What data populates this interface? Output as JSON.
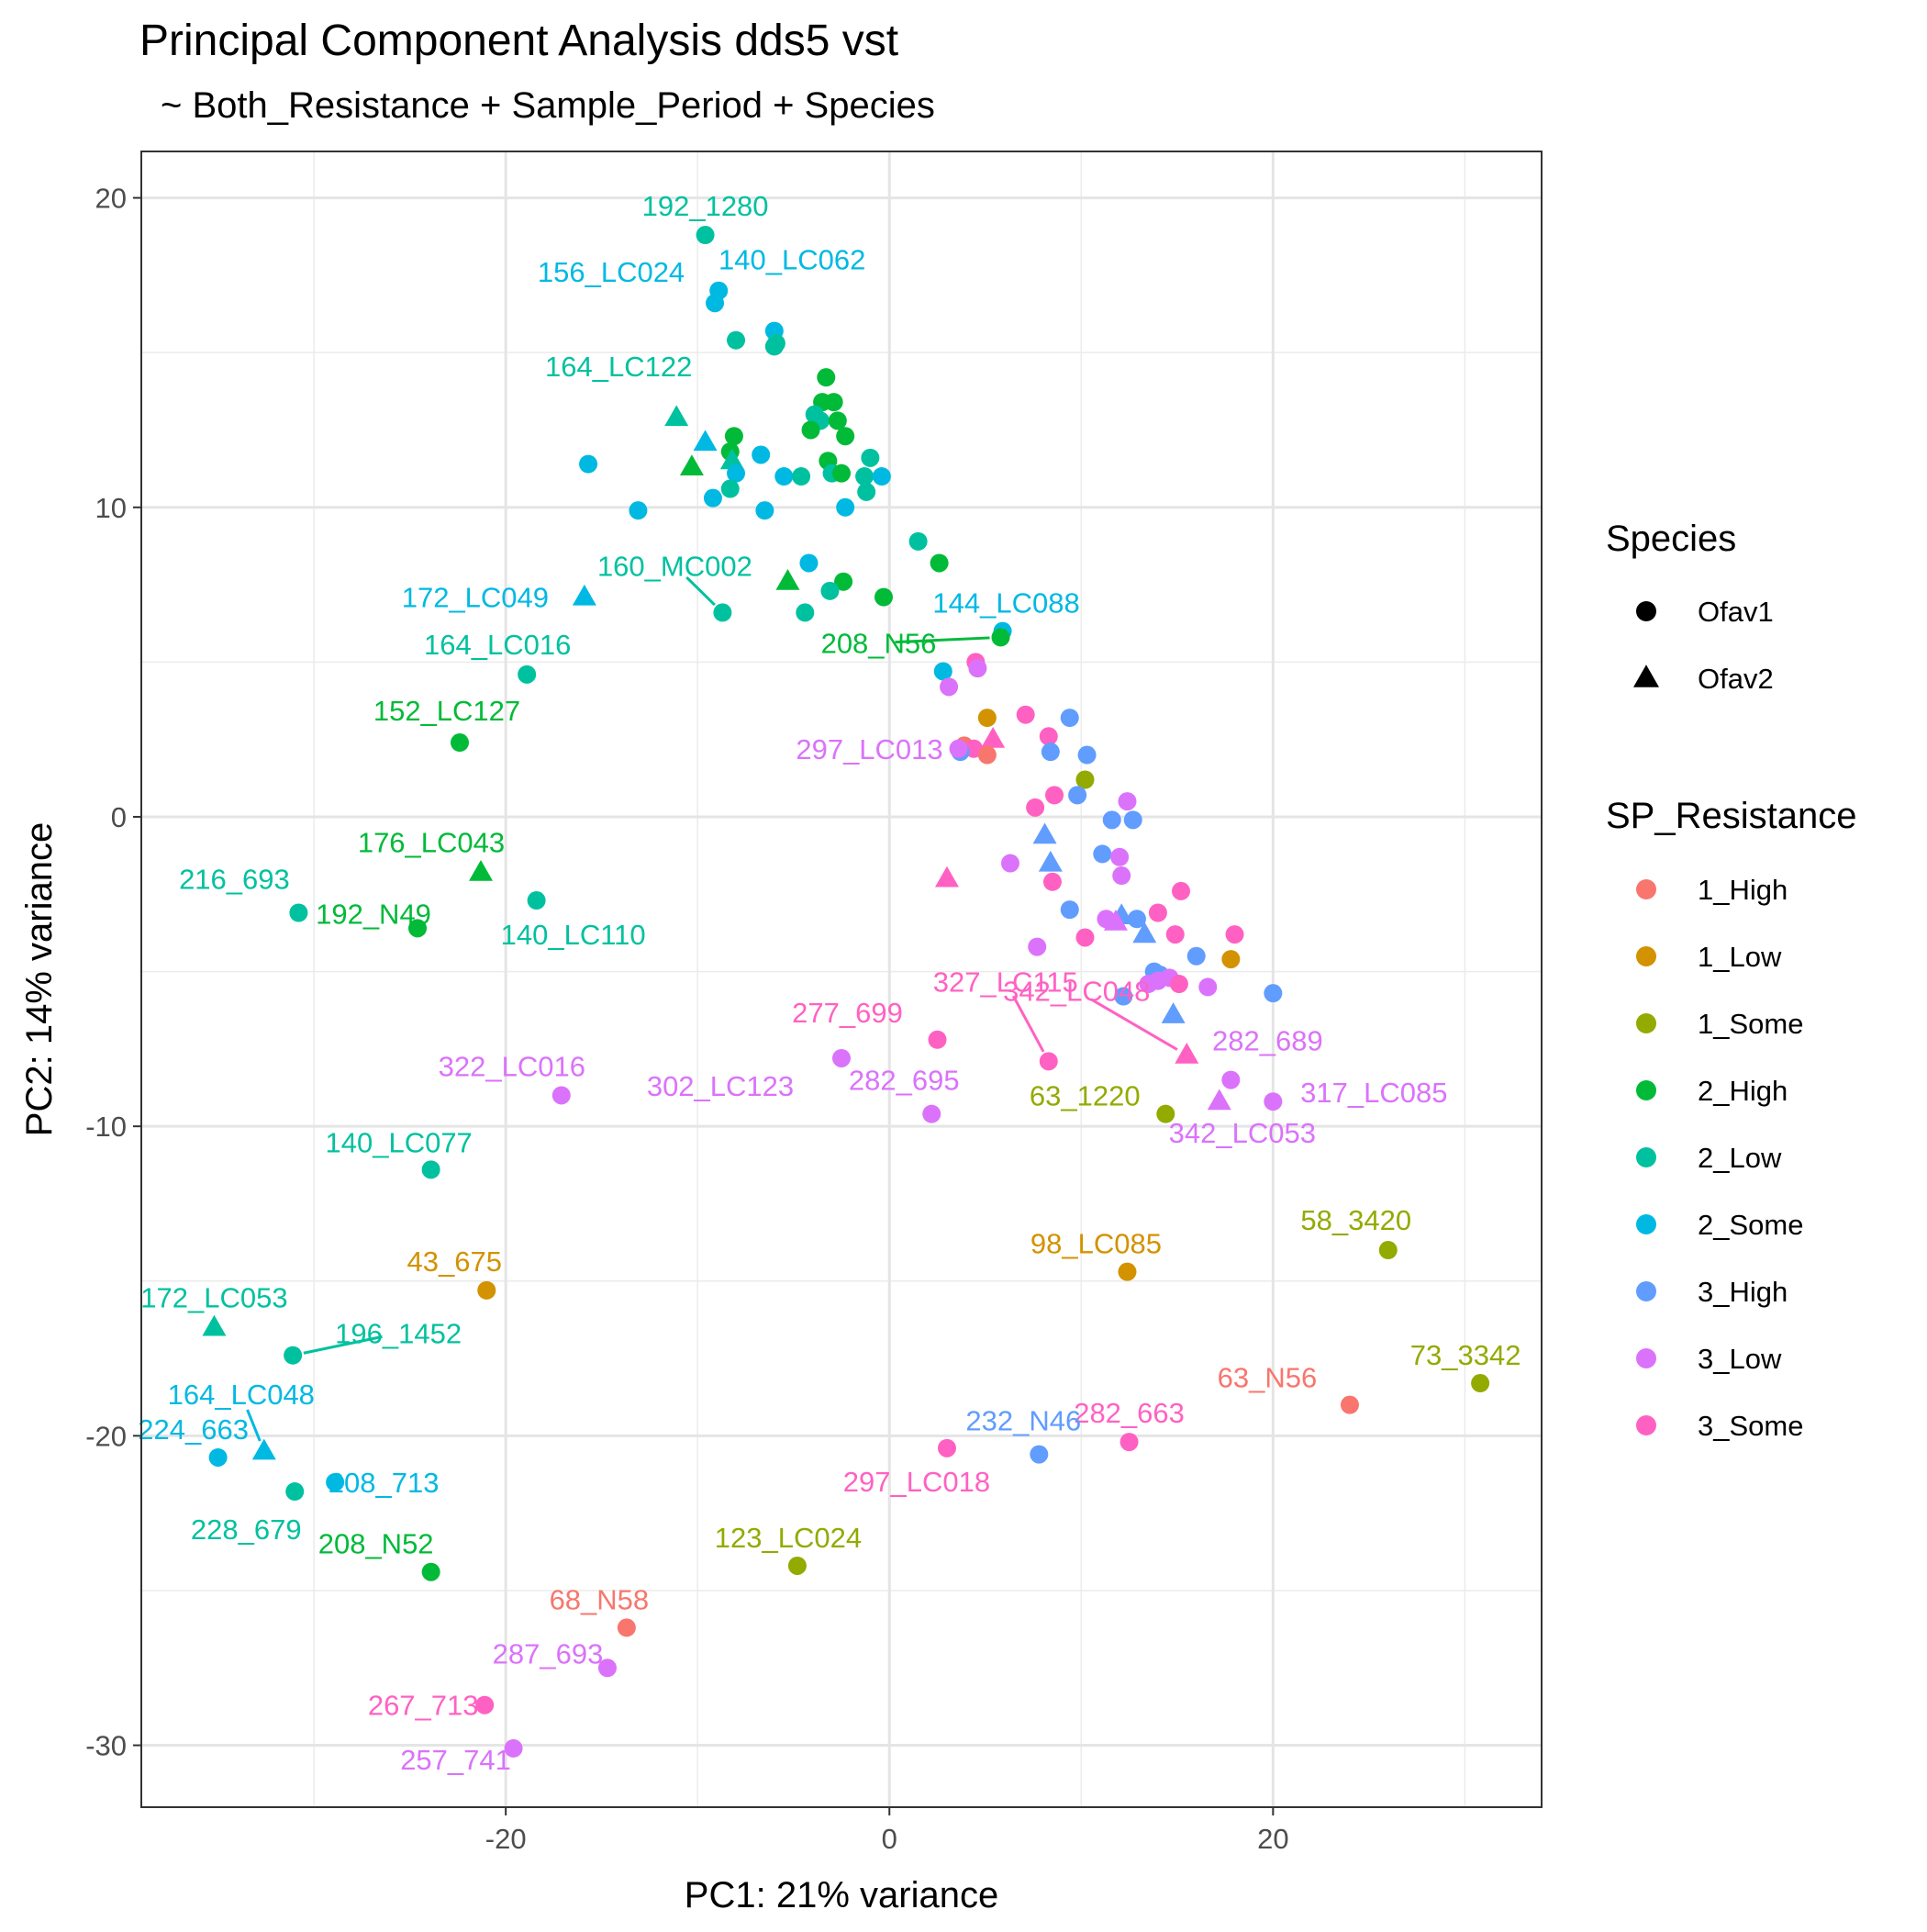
{
  "chart_data": {
    "type": "scatter",
    "title": "Principal Component Analysis dds5 vst",
    "subtitle": "~ Both_Resistance + Sample_Period + Species",
    "xlabel": "PC1: 21% variance",
    "ylabel": "PC2: 14% variance",
    "xlim": [
      -39,
      34
    ],
    "ylim": [
      -32,
      21.5
    ],
    "x_ticks": [
      -20,
      0,
      20
    ],
    "y_ticks": [
      -30,
      -20,
      -10,
      0,
      10,
      20
    ],
    "x_tick_labels": [
      "-20",
      "0",
      "20"
    ],
    "y_tick_labels": [
      "-30",
      "-20",
      "-10",
      "0",
      "10",
      "20"
    ],
    "grid": true,
    "legend_position": "right",
    "shape_legend": {
      "title": "Species",
      "items": [
        {
          "label": "Ofav1",
          "shape": "circle"
        },
        {
          "label": "Ofav2",
          "shape": "triangle"
        }
      ]
    },
    "color_legend": {
      "title": "SP_Resistance",
      "items": [
        {
          "label": "1_High",
          "color": "#F8766D"
        },
        {
          "label": "1_Low",
          "color": "#D39200"
        },
        {
          "label": "1_Some",
          "color": "#93AA00"
        },
        {
          "label": "2_High",
          "color": "#00BA38"
        },
        {
          "label": "2_Low",
          "color": "#00C19F"
        },
        {
          "label": "2_Some",
          "color": "#00B9E3"
        },
        {
          "label": "3_High",
          "color": "#619CFF"
        },
        {
          "label": "3_Low",
          "color": "#DB72FB"
        },
        {
          "label": "3_Some",
          "color": "#FF61C3"
        }
      ]
    },
    "points": [
      {
        "x": -9.6,
        "y": 18.8,
        "group": "2_Low",
        "species": "Ofav1",
        "label": "192_1280"
      },
      {
        "x": -8.9,
        "y": 17.0,
        "group": "2_Some",
        "species": "Ofav1",
        "label": "140_LC062"
      },
      {
        "x": -9.1,
        "y": 16.6,
        "group": "2_Some",
        "species": "Ofav1",
        "label": "156_LC024"
      },
      {
        "x": -6.0,
        "y": 15.7,
        "group": "2_Some",
        "species": "Ofav1"
      },
      {
        "x": -8.0,
        "y": 15.4,
        "group": "2_Low",
        "species": "Ofav1"
      },
      {
        "x": -5.9,
        "y": 15.3,
        "group": "2_Low",
        "species": "Ofav1"
      },
      {
        "x": -6.0,
        "y": 15.2,
        "group": "2_Low",
        "species": "Ofav1"
      },
      {
        "x": -3.3,
        "y": 14.2,
        "group": "2_High",
        "species": "Ofav1"
      },
      {
        "x": -11.1,
        "y": 12.9,
        "group": "2_Low",
        "species": "Ofav2",
        "label": "164_LC122"
      },
      {
        "x": -3.5,
        "y": 13.4,
        "group": "2_High",
        "species": "Ofav1"
      },
      {
        "x": -2.9,
        "y": 13.4,
        "group": "2_High",
        "species": "Ofav1"
      },
      {
        "x": -3.9,
        "y": 13.0,
        "group": "2_Low",
        "species": "Ofav1"
      },
      {
        "x": -3.6,
        "y": 12.8,
        "group": "2_Low",
        "species": "Ofav1"
      },
      {
        "x": -2.7,
        "y": 12.8,
        "group": "2_High",
        "species": "Ofav1"
      },
      {
        "x": -4.1,
        "y": 12.5,
        "group": "2_High",
        "species": "Ofav1"
      },
      {
        "x": -8.1,
        "y": 12.3,
        "group": "2_High",
        "species": "Ofav1"
      },
      {
        "x": -2.3,
        "y": 12.3,
        "group": "2_High",
        "species": "Ofav1"
      },
      {
        "x": -9.6,
        "y": 12.1,
        "group": "2_Some",
        "species": "Ofav2"
      },
      {
        "x": -8.3,
        "y": 11.8,
        "group": "2_High",
        "species": "Ofav1"
      },
      {
        "x": -6.7,
        "y": 11.7,
        "group": "2_Some",
        "species": "Ofav1"
      },
      {
        "x": -1.0,
        "y": 11.6,
        "group": "2_Low",
        "species": "Ofav1"
      },
      {
        "x": -8.2,
        "y": 11.5,
        "group": "2_Low",
        "species": "Ofav2"
      },
      {
        "x": -3.2,
        "y": 11.5,
        "group": "2_High",
        "species": "Ofav1"
      },
      {
        "x": -10.3,
        "y": 11.3,
        "group": "2_High",
        "species": "Ofav2"
      },
      {
        "x": -15.7,
        "y": 11.4,
        "group": "2_Some",
        "species": "Ofav1"
      },
      {
        "x": -3.0,
        "y": 11.1,
        "group": "2_Low",
        "species": "Ofav1"
      },
      {
        "x": -2.5,
        "y": 11.1,
        "group": "2_High",
        "species": "Ofav1"
      },
      {
        "x": -8.0,
        "y": 11.1,
        "group": "2_Some",
        "species": "Ofav1"
      },
      {
        "x": -1.3,
        "y": 11.0,
        "group": "2_Low",
        "species": "Ofav1"
      },
      {
        "x": -0.4,
        "y": 11.0,
        "group": "2_Some",
        "species": "Ofav1"
      },
      {
        "x": -5.5,
        "y": 11.0,
        "group": "2_Some",
        "species": "Ofav1"
      },
      {
        "x": -4.6,
        "y": 11.0,
        "group": "2_Low",
        "species": "Ofav1"
      },
      {
        "x": -8.3,
        "y": 10.6,
        "group": "2_Low",
        "species": "Ofav1"
      },
      {
        "x": -1.2,
        "y": 10.5,
        "group": "2_Low",
        "species": "Ofav1"
      },
      {
        "x": -9.2,
        "y": 10.3,
        "group": "2_Some",
        "species": "Ofav1"
      },
      {
        "x": -2.3,
        "y": 10.0,
        "group": "2_Some",
        "species": "Ofav1"
      },
      {
        "x": -13.1,
        "y": 9.9,
        "group": "2_Some",
        "species": "Ofav1"
      },
      {
        "x": -6.5,
        "y": 9.9,
        "group": "2_Some",
        "species": "Ofav1"
      },
      {
        "x": 1.5,
        "y": 8.9,
        "group": "2_Low",
        "species": "Ofav1"
      },
      {
        "x": 2.6,
        "y": 8.2,
        "group": "2_High",
        "species": "Ofav1"
      },
      {
        "x": -4.2,
        "y": 8.2,
        "group": "2_Some",
        "species": "Ofav1"
      },
      {
        "x": -5.3,
        "y": 7.6,
        "group": "2_High",
        "species": "Ofav2"
      },
      {
        "x": -2.4,
        "y": 7.6,
        "group": "2_High",
        "species": "Ofav1"
      },
      {
        "x": -3.1,
        "y": 7.3,
        "group": "2_Low",
        "species": "Ofav1"
      },
      {
        "x": -0.3,
        "y": 7.1,
        "group": "2_High",
        "species": "Ofav1"
      },
      {
        "x": -15.9,
        "y": 7.1,
        "group": "2_Some",
        "species": "Ofav2",
        "label": "172_LC049"
      },
      {
        "x": -4.4,
        "y": 6.6,
        "group": "2_Low",
        "species": "Ofav1"
      },
      {
        "x": -8.7,
        "y": 6.6,
        "group": "2_Low",
        "species": "Ofav1",
        "label": "160_MC002"
      },
      {
        "x": 5.9,
        "y": 6.0,
        "group": "2_Some",
        "species": "Ofav1",
        "label": "144_LC088"
      },
      {
        "x": 5.8,
        "y": 5.8,
        "group": "2_High",
        "species": "Ofav1",
        "label": "208_N56"
      },
      {
        "x": 4.5,
        "y": 5.0,
        "group": "3_Some",
        "species": "Ofav1"
      },
      {
        "x": 4.6,
        "y": 4.8,
        "group": "3_Low",
        "species": "Ofav1"
      },
      {
        "x": 2.8,
        "y": 4.7,
        "group": "2_Some",
        "species": "Ofav1"
      },
      {
        "x": -18.9,
        "y": 4.6,
        "group": "2_Low",
        "species": "Ofav1",
        "label": "164_LC016"
      },
      {
        "x": 3.1,
        "y": 4.2,
        "group": "3_Low",
        "species": "Ofav1"
      },
      {
        "x": 7.1,
        "y": 3.3,
        "group": "3_Some",
        "species": "Ofav1"
      },
      {
        "x": 5.1,
        "y": 3.2,
        "group": "1_Low",
        "species": "Ofav1"
      },
      {
        "x": 9.4,
        "y": 3.2,
        "group": "3_High",
        "species": "Ofav1"
      },
      {
        "x": 8.3,
        "y": 2.6,
        "group": "3_Some",
        "species": "Ofav1"
      },
      {
        "x": 5.4,
        "y": 2.5,
        "group": "3_Some",
        "species": "Ofav2"
      },
      {
        "x": -22.4,
        "y": 2.4,
        "group": "2_High",
        "species": "Ofav1",
        "label": "152_LC127"
      },
      {
        "x": 3.9,
        "y": 2.3,
        "group": "1_High",
        "species": "Ofav1"
      },
      {
        "x": 4.4,
        "y": 2.2,
        "group": "3_Some",
        "species": "Ofav1"
      },
      {
        "x": 3.7,
        "y": 2.1,
        "group": "3_High",
        "species": "Ofav1"
      },
      {
        "x": 8.4,
        "y": 2.1,
        "group": "3_High",
        "species": "Ofav1"
      },
      {
        "x": 10.3,
        "y": 2.0,
        "group": "3_High",
        "species": "Ofav1"
      },
      {
        "x": 5.1,
        "y": 2.0,
        "group": "1_High",
        "species": "Ofav1"
      },
      {
        "x": 3.6,
        "y": 2.2,
        "group": "3_Low",
        "species": "Ofav1",
        "label": "297_LC013"
      },
      {
        "x": 10.2,
        "y": 1.2,
        "group": "1_Some",
        "species": "Ofav1"
      },
      {
        "x": 8.6,
        "y": 0.7,
        "group": "3_Some",
        "species": "Ofav1"
      },
      {
        "x": 9.8,
        "y": 0.7,
        "group": "3_High",
        "species": "Ofav1"
      },
      {
        "x": 12.4,
        "y": 0.5,
        "group": "3_Low",
        "species": "Ofav1"
      },
      {
        "x": 7.6,
        "y": 0.3,
        "group": "3_Some",
        "species": "Ofav1"
      },
      {
        "x": 11.6,
        "y": -0.1,
        "group": "3_High",
        "species": "Ofav1"
      },
      {
        "x": 12.7,
        "y": -0.1,
        "group": "3_High",
        "species": "Ofav1"
      },
      {
        "x": 8.1,
        "y": -0.6,
        "group": "3_High",
        "species": "Ofav2"
      },
      {
        "x": 11.1,
        "y": -1.2,
        "group": "3_High",
        "species": "Ofav1"
      },
      {
        "x": 12.0,
        "y": -1.3,
        "group": "3_Low",
        "species": "Ofav1"
      },
      {
        "x": 6.3,
        "y": -1.5,
        "group": "3_Low",
        "species": "Ofav1"
      },
      {
        "x": 8.4,
        "y": -1.5,
        "group": "3_High",
        "species": "Ofav2"
      },
      {
        "x": -21.3,
        "y": -1.8,
        "group": "2_High",
        "species": "Ofav2",
        "label": "176_LC043"
      },
      {
        "x": 12.1,
        "y": -1.9,
        "group": "3_Low",
        "species": "Ofav1"
      },
      {
        "x": 3.0,
        "y": -2.0,
        "group": "3_Some",
        "species": "Ofav2"
      },
      {
        "x": 8.5,
        "y": -2.1,
        "group": "3_Some",
        "species": "Ofav1"
      },
      {
        "x": 15.2,
        "y": -2.4,
        "group": "3_Some",
        "species": "Ofav1"
      },
      {
        "x": -18.4,
        "y": -2.7,
        "group": "2_Low",
        "species": "Ofav1",
        "label": "140_LC110"
      },
      {
        "x": 9.4,
        "y": -3.0,
        "group": "3_High",
        "species": "Ofav1"
      },
      {
        "x": 14.0,
        "y": -3.1,
        "group": "3_Some",
        "species": "Ofav1"
      },
      {
        "x": -30.8,
        "y": -3.1,
        "group": "2_Low",
        "species": "Ofav1",
        "label": "216_693"
      },
      {
        "x": 11.3,
        "y": -3.3,
        "group": "3_Low",
        "species": "Ofav1"
      },
      {
        "x": 12.1,
        "y": -3.2,
        "group": "3_High",
        "species": "Ofav2"
      },
      {
        "x": 12.9,
        "y": -3.3,
        "group": "3_High",
        "species": "Ofav1"
      },
      {
        "x": 11.8,
        "y": -3.4,
        "group": "3_Low",
        "species": "Ofav2"
      },
      {
        "x": -24.6,
        "y": -3.6,
        "group": "2_High",
        "species": "Ofav1",
        "label": "192_N49"
      },
      {
        "x": 18.0,
        "y": -3.8,
        "group": "3_Some",
        "species": "Ofav1"
      },
      {
        "x": 14.9,
        "y": -3.8,
        "group": "3_Some",
        "species": "Ofav1"
      },
      {
        "x": 13.3,
        "y": -3.8,
        "group": "3_High",
        "species": "Ofav2"
      },
      {
        "x": 10.2,
        "y": -3.9,
        "group": "3_Some",
        "species": "Ofav1"
      },
      {
        "x": 7.7,
        "y": -4.2,
        "group": "3_Low",
        "species": "Ofav1"
      },
      {
        "x": 16.0,
        "y": -4.5,
        "group": "3_High",
        "species": "Ofav1"
      },
      {
        "x": 17.8,
        "y": -4.6,
        "group": "1_Low",
        "species": "Ofav1"
      },
      {
        "x": 13.8,
        "y": -5.0,
        "group": "3_High",
        "species": "Ofav1"
      },
      {
        "x": 14.1,
        "y": -5.1,
        "group": "3_High",
        "species": "Ofav1"
      },
      {
        "x": 14.6,
        "y": -5.2,
        "group": "3_Low",
        "species": "Ofav1"
      },
      {
        "x": 14.0,
        "y": -5.3,
        "group": "3_Low",
        "species": "Ofav1"
      },
      {
        "x": 13.5,
        "y": -5.4,
        "group": "3_Low",
        "species": "Ofav1"
      },
      {
        "x": 15.1,
        "y": -5.4,
        "group": "3_Some",
        "species": "Ofav1"
      },
      {
        "x": 16.6,
        "y": -5.5,
        "group": "3_Low",
        "species": "Ofav1"
      },
      {
        "x": 20.0,
        "y": -5.7,
        "group": "3_High",
        "species": "Ofav1"
      },
      {
        "x": 12.2,
        "y": -5.8,
        "group": "3_High",
        "species": "Ofav1"
      },
      {
        "x": 14.8,
        "y": -6.4,
        "group": "3_High",
        "species": "Ofav2"
      },
      {
        "x": 2.5,
        "y": -7.2,
        "group": "3_Some",
        "species": "Ofav1",
        "label": "277_699"
      },
      {
        "x": 15.5,
        "y": -7.7,
        "group": "3_Some",
        "species": "Ofav2",
        "label": "342_LC048"
      },
      {
        "x": -2.5,
        "y": -7.8,
        "group": "3_Low",
        "species": "Ofav1",
        "label": "302_LC123"
      },
      {
        "x": 8.3,
        "y": -7.9,
        "group": "3_Some",
        "species": "Ofav1",
        "label": "327_LC115"
      },
      {
        "x": 17.8,
        "y": -8.5,
        "group": "3_Low",
        "species": "Ofav1",
        "label": "282_689"
      },
      {
        "x": -17.1,
        "y": -9.0,
        "group": "3_Low",
        "species": "Ofav1",
        "label": "322_LC016"
      },
      {
        "x": 20.0,
        "y": -9.2,
        "group": "3_Low",
        "species": "Ofav1",
        "label": "317_LC085"
      },
      {
        "x": 17.2,
        "y": -9.2,
        "group": "3_Low",
        "species": "Ofav2",
        "label": "342_LC053"
      },
      {
        "x": 14.4,
        "y": -9.6,
        "group": "1_Some",
        "species": "Ofav1",
        "label": "63_1220"
      },
      {
        "x": 2.2,
        "y": -9.6,
        "group": "3_Low",
        "species": "Ofav1",
        "label": "282_695"
      },
      {
        "x": -23.9,
        "y": -11.4,
        "group": "2_Low",
        "species": "Ofav1",
        "label": "140_LC077"
      },
      {
        "x": 26.0,
        "y": -14.0,
        "group": "1_Some",
        "species": "Ofav1",
        "label": "58_3420"
      },
      {
        "x": 12.4,
        "y": -14.7,
        "group": "1_Low",
        "species": "Ofav1",
        "label": "98_LC085"
      },
      {
        "x": -21.0,
        "y": -15.3,
        "group": "1_Low",
        "species": "Ofav1",
        "label": "43_675"
      },
      {
        "x": -35.2,
        "y": -16.5,
        "group": "2_Low",
        "species": "Ofav2",
        "label": "172_LC053"
      },
      {
        "x": -31.1,
        "y": -17.4,
        "group": "2_Low",
        "species": "Ofav1",
        "label": "196_1452"
      },
      {
        "x": 30.8,
        "y": -18.3,
        "group": "1_Some",
        "species": "Ofav1",
        "label": "73_3342"
      },
      {
        "x": 24.0,
        "y": -19.0,
        "group": "1_High",
        "species": "Ofav1",
        "label": "63_N56"
      },
      {
        "x": 12.5,
        "y": -20.2,
        "group": "3_Some",
        "species": "Ofav1",
        "label": "282_663"
      },
      {
        "x": 3.0,
        "y": -20.4,
        "group": "3_Some",
        "species": "Ofav1",
        "label": "297_LC018"
      },
      {
        "x": -32.6,
        "y": -20.5,
        "group": "2_Some",
        "species": "Ofav2",
        "label": "164_LC048"
      },
      {
        "x": 7.8,
        "y": -20.6,
        "group": "3_High",
        "species": "Ofav1",
        "label": "232_N46"
      },
      {
        "x": -35.0,
        "y": -20.7,
        "group": "2_Some",
        "species": "Ofav1",
        "label": "224_663"
      },
      {
        "x": -28.9,
        "y": -21.5,
        "group": "2_Some",
        "species": "Ofav1",
        "label": "208_713"
      },
      {
        "x": -31.0,
        "y": -21.8,
        "group": "2_Low",
        "species": "Ofav1",
        "label": "228_679"
      },
      {
        "x": -4.8,
        "y": -24.2,
        "group": "1_Some",
        "species": "Ofav1",
        "label": "123_LC024"
      },
      {
        "x": -23.9,
        "y": -24.4,
        "group": "2_High",
        "species": "Ofav1",
        "label": "208_N52"
      },
      {
        "x": -13.7,
        "y": -26.2,
        "group": "1_High",
        "species": "Ofav1",
        "label": "68_N58"
      },
      {
        "x": -14.7,
        "y": -27.5,
        "group": "3_Low",
        "species": "Ofav1",
        "label": "287_693"
      },
      {
        "x": -21.1,
        "y": -28.7,
        "group": "3_Some",
        "species": "Ofav1",
        "label": "267_713"
      },
      {
        "x": -19.6,
        "y": -30.1,
        "group": "3_Low",
        "species": "Ofav1",
        "label": "257_741"
      }
    ]
  }
}
